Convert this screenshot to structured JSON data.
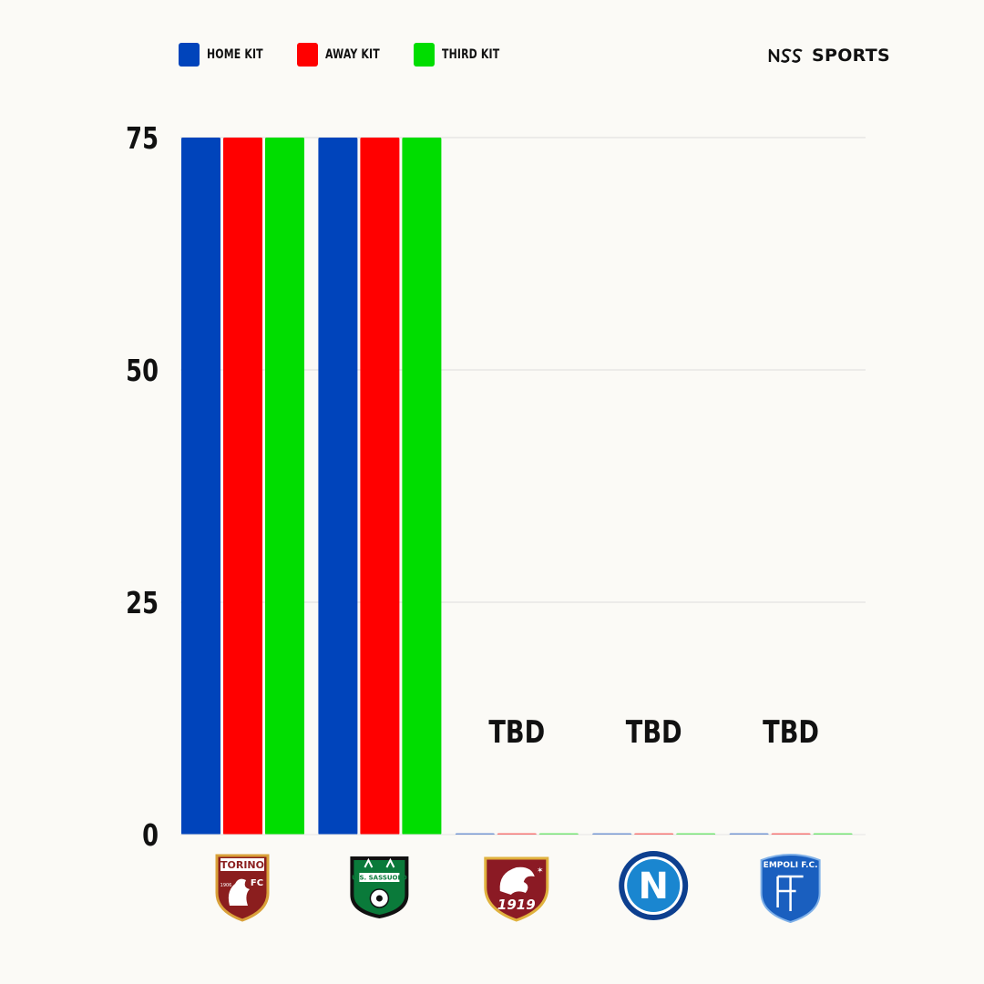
{
  "legend": [
    {
      "label": "HOME KIT",
      "color": "#0044bb"
    },
    {
      "label": "AWAY KIT",
      "color": "#ff0000"
    },
    {
      "label": "THIRD KIT",
      "color": "#00dd00"
    }
  ],
  "brand": {
    "text": "SPORTS",
    "icon": "nss-logo-icon"
  },
  "chart_data": {
    "type": "bar",
    "categories": [
      "Torino",
      "Sassuolo",
      "Salernitana",
      "Napoli",
      "Empoli"
    ],
    "series": [
      {
        "name": "HOME KIT",
        "color": "#0044bb",
        "values": [
          75,
          75,
          0,
          0,
          0
        ]
      },
      {
        "name": "AWAY KIT",
        "color": "#ff0000",
        "values": [
          75,
          75,
          0,
          0,
          0
        ]
      },
      {
        "name": "THIRD KIT",
        "color": "#00dd00",
        "values": [
          75,
          75,
          0,
          0,
          0
        ]
      }
    ],
    "annotations": [
      "",
      "",
      "TBD",
      "TBD",
      "TBD"
    ],
    "yticks": [
      0,
      25,
      50,
      75
    ],
    "ylim": [
      0,
      75
    ],
    "grid": true,
    "legend_position": "top-left",
    "category_logos": [
      {
        "name": "torino-crest-icon",
        "text": "TORINO",
        "sub": "FC",
        "year": "1906",
        "color": "#8b1e1e"
      },
      {
        "name": "sassuolo-crest-icon",
        "text": "U.S. SASSUOLO",
        "color": "#0a7a3a"
      },
      {
        "name": "salernitana-crest-icon",
        "text": "1919",
        "color": "#8b1a24"
      },
      {
        "name": "napoli-crest-icon",
        "text": "N",
        "color": "#1a86d0"
      },
      {
        "name": "empoli-crest-icon",
        "text": "EMPOLI F.C.",
        "color": "#1a5fbf"
      }
    ]
  }
}
